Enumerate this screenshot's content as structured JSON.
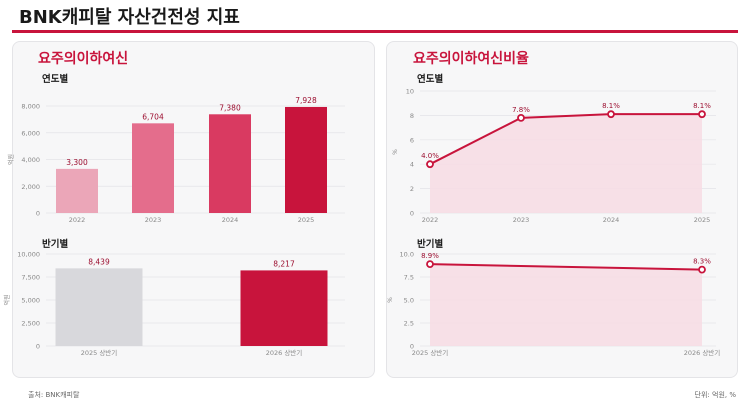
{
  "page": {
    "title": "BNK캐피탈 자산건전성 지표"
  },
  "left_panel": {
    "title": "요주의이하여신",
    "sub_annual": "연도별",
    "sub_half": "반기별"
  },
  "right_panel": {
    "title": "요주의이하여신비율",
    "sub_annual": "연도별",
    "sub_half": "반기별"
  },
  "footer": {
    "source": "출처: BNK캐피탈",
    "unit": "단위: 억원, %"
  },
  "colors": {
    "accent": "#c8143c",
    "bars_annual": [
      "#eba6b8",
      "#e46d8c",
      "#d93a61",
      "#c8143c"
    ],
    "bars_half": [
      "#d8d8dc",
      "#c8143c"
    ],
    "area_fill": "#f7dce4"
  },
  "chart_data": [
    {
      "type": "bar",
      "categories": [
        "2022",
        "2023",
        "2024",
        "2025"
      ],
      "values": [
        3300,
        6704,
        7380,
        7928
      ],
      "data_labels": [
        "3,300",
        "6,704",
        "7,380",
        "7,928"
      ],
      "ylabel": "억원",
      "ylim": [
        0,
        8000
      ],
      "yticks": [
        "0",
        "2,000",
        "4,000",
        "6,000",
        "8,000"
      ],
      "grid": true
    },
    {
      "type": "bar",
      "categories": [
        "2025 상반기",
        "2026 상반기"
      ],
      "values": [
        8439,
        8217
      ],
      "data_labels": [
        "8,439",
        "8,217"
      ],
      "ylabel": "억원",
      "ylim": [
        0,
        10000
      ],
      "yticks": [
        "0",
        "2,500",
        "5,000",
        "7,500",
        "10,000"
      ],
      "grid": true
    },
    {
      "type": "area",
      "categories": [
        "2022",
        "2023",
        "2024",
        "2025"
      ],
      "values": [
        4.0,
        7.8,
        8.1,
        8.1
      ],
      "data_labels": [
        "4.0%",
        "7.8%",
        "8.1%",
        "8.1%"
      ],
      "ylabel": "%",
      "ylim": [
        0,
        10
      ],
      "yticks": [
        "0",
        "2",
        "4",
        "6",
        "8",
        "10"
      ],
      "grid": true
    },
    {
      "type": "area",
      "categories": [
        "2025 상반기",
        "2026 상반기"
      ],
      "values": [
        8.9,
        8.3
      ],
      "data_labels": [
        "8.9%",
        "8.3%"
      ],
      "ylabel": "%",
      "ylim": [
        0,
        10
      ],
      "yticks": [
        "0",
        "2.5",
        "5.0",
        "7.5",
        "10.0"
      ],
      "grid": true
    }
  ]
}
